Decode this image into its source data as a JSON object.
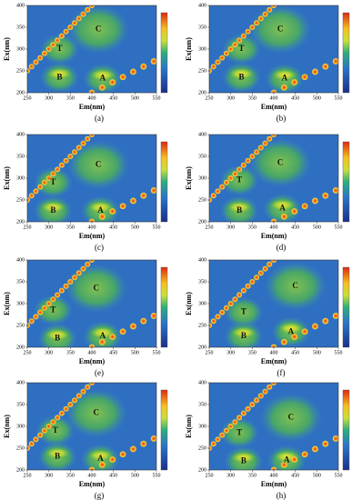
{
  "chart_data": [
    {
      "type": "contour",
      "panel_label": "(a)",
      "x_label": "Em(nm)",
      "y_label": "Ex(nm)",
      "xlim": [
        250,
        550
      ],
      "ylim": [
        200,
        400
      ],
      "xticks": [
        250,
        300,
        350,
        400,
        450,
        500,
        550
      ],
      "yticks": [
        200,
        250,
        300,
        350,
        400
      ],
      "annotations": [
        {
          "text": "C",
          "x": 415,
          "y": 345
        },
        {
          "text": "T",
          "x": 325,
          "y": 300
        },
        {
          "text": "B",
          "x": 325,
          "y": 235
        },
        {
          "text": "A",
          "x": 425,
          "y": 232
        }
      ]
    },
    {
      "type": "contour",
      "panel_label": "(b)",
      "x_label": "Em(nm)",
      "y_label": "Ex(nm)",
      "xlim": [
        250,
        550
      ],
      "ylim": [
        200,
        400
      ],
      "xticks": [
        250,
        300,
        350,
        400,
        450,
        500,
        550
      ],
      "yticks": [
        200,
        250,
        300,
        350,
        400
      ],
      "annotations": [
        {
          "text": "C",
          "x": 415,
          "y": 345
        },
        {
          "text": "T",
          "x": 325,
          "y": 300
        },
        {
          "text": "B",
          "x": 325,
          "y": 235
        },
        {
          "text": "A",
          "x": 425,
          "y": 232
        }
      ]
    },
    {
      "type": "contour",
      "panel_label": "(c)",
      "x_label": "Em(nm)",
      "y_label": "Ex(nm)",
      "xlim": [
        250,
        550
      ],
      "ylim": [
        200,
        400
      ],
      "xticks": [
        250,
        300,
        350,
        400,
        450,
        500,
        550
      ],
      "yticks": [
        200,
        250,
        300,
        350,
        400
      ],
      "annotations": [
        {
          "text": "C",
          "x": 415,
          "y": 330
        },
        {
          "text": "T",
          "x": 310,
          "y": 290
        },
        {
          "text": "B",
          "x": 310,
          "y": 225
        },
        {
          "text": "A",
          "x": 420,
          "y": 225
        }
      ]
    },
    {
      "type": "contour",
      "panel_label": "(d)",
      "x_label": "Em(nm)",
      "y_label": "Ex(nm)",
      "xlim": [
        250,
        550
      ],
      "ylim": [
        200,
        400
      ],
      "xticks": [
        250,
        300,
        350,
        400,
        450,
        500,
        550
      ],
      "yticks": [
        200,
        250,
        300,
        350,
        400
      ],
      "annotations": [
        {
          "text": "C",
          "x": 415,
          "y": 335
        },
        {
          "text": "T",
          "x": 320,
          "y": 295
        },
        {
          "text": "B",
          "x": 320,
          "y": 225
        },
        {
          "text": "A",
          "x": 420,
          "y": 230
        }
      ]
    },
    {
      "type": "contour",
      "panel_label": "(e)",
      "x_label": "Em(nm)",
      "y_label": "Ex(nm)",
      "xlim": [
        250,
        550
      ],
      "ylim": [
        200,
        400
      ],
      "xticks": [
        250,
        300,
        350,
        400,
        450,
        500,
        550
      ],
      "yticks": [
        200,
        250,
        300,
        350,
        400
      ],
      "annotations": [
        {
          "text": "C",
          "x": 410,
          "y": 335
        },
        {
          "text": "T",
          "x": 310,
          "y": 285
        },
        {
          "text": "B",
          "x": 320,
          "y": 220
        },
        {
          "text": "A",
          "x": 425,
          "y": 225
        }
      ]
    },
    {
      "type": "contour",
      "panel_label": "(f)",
      "x_label": "Em(nm)",
      "y_label": "Ex(nm)",
      "xlim": [
        250,
        550
      ],
      "ylim": [
        200,
        400
      ],
      "xticks": [
        250,
        300,
        350,
        400,
        450,
        500,
        550
      ],
      "yticks": [
        200,
        250,
        300,
        350,
        400
      ],
      "annotations": [
        {
          "text": "C",
          "x": 450,
          "y": 340
        },
        {
          "text": "T",
          "x": 330,
          "y": 280
        },
        {
          "text": "B",
          "x": 330,
          "y": 225
        },
        {
          "text": "A",
          "x": 440,
          "y": 235
        }
      ]
    },
    {
      "type": "contour",
      "panel_label": "(g)",
      "x_label": "Em(nm)",
      "y_label": "Ex(nm)",
      "xlim": [
        250,
        550
      ],
      "ylim": [
        200,
        400
      ],
      "xticks": [
        250,
        300,
        350,
        400,
        450,
        500,
        550
      ],
      "yticks": [
        200,
        250,
        300,
        350,
        400
      ],
      "annotations": [
        {
          "text": "C",
          "x": 410,
          "y": 330
        },
        {
          "text": "T",
          "x": 315,
          "y": 290
        },
        {
          "text": "B",
          "x": 320,
          "y": 230
        },
        {
          "text": "A",
          "x": 420,
          "y": 225
        }
      ]
    },
    {
      "type": "contour",
      "panel_label": "(h)",
      "x_label": "Em(nm)",
      "y_label": "Ex(nm)",
      "xlim": [
        250,
        550
      ],
      "ylim": [
        200,
        400
      ],
      "xticks": [
        250,
        300,
        350,
        400,
        450,
        500,
        550
      ],
      "yticks": [
        200,
        250,
        300,
        350,
        400
      ],
      "annotations": [
        {
          "text": "C",
          "x": 440,
          "y": 320
        },
        {
          "text": "T",
          "x": 320,
          "y": 285
        },
        {
          "text": "B",
          "x": 330,
          "y": 220
        },
        {
          "text": "A",
          "x": 430,
          "y": 222
        }
      ]
    }
  ]
}
